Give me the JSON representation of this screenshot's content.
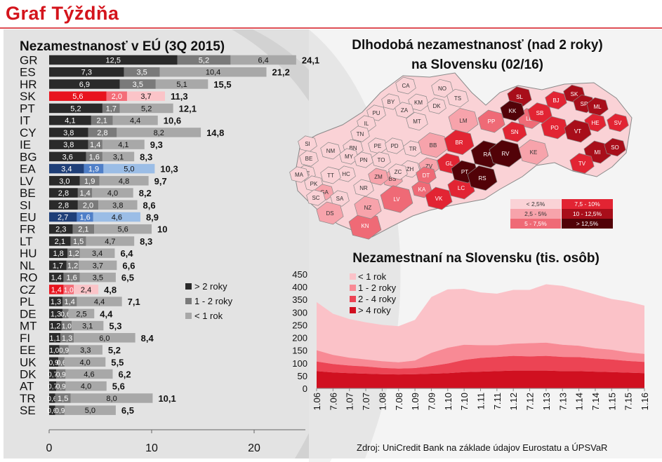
{
  "header": {
    "title": "Graf Týždňa"
  },
  "source": "Zdroj: UniCredit Bank na základe údajov Eurostatu a ÚPSVaR",
  "colors": {
    "accent_red": "#d4141c",
    "gt2": "#2a2a2a",
    "y1_2": "#7a7a7a",
    "lt1": "#a8a8a8",
    "gt2_hl_red": "#e8141e",
    "y1_2_hl_red": "#f46d78",
    "lt1_hl_red": "#fbc4c8",
    "gt2_hl_blue": "#1f3f78",
    "y1_2_hl_blue": "#4f7fc8",
    "lt1_hl_blue": "#9bbde6",
    "area_lt1": "#fbc2c8",
    "area_1_2": "#f88a95",
    "area_2_4": "#ec4454",
    "area_gt4": "#d01020"
  },
  "chart_data": [
    {
      "type": "bar",
      "title": "Nezamestnanosť v EÚ (3Q 2015)",
      "stacked": true,
      "orientation": "horizontal",
      "xlim": [
        0,
        25
      ],
      "xticks": [
        0,
        10,
        20
      ],
      "legend": [
        "> 2 roky",
        "1 - 2 roky",
        "< 1 rok"
      ],
      "rows": [
        {
          "c": "GR",
          "v": [
            12.5,
            5.2,
            6.4
          ],
          "t": "24,1",
          "l": [
            "12,5",
            "5,2",
            "6,4"
          ]
        },
        {
          "c": "ES",
          "v": [
            7.3,
            3.5,
            10.4
          ],
          "t": "21,2",
          "l": [
            "7,3",
            "3,5",
            "10,4"
          ]
        },
        {
          "c": "HR",
          "v": [
            6.9,
            3.5,
            5.1
          ],
          "t": "15,5",
          "l": [
            "6,9",
            "3,5",
            "5,1"
          ]
        },
        {
          "c": "SK",
          "v": [
            5.6,
            2.0,
            3.7
          ],
          "t": "11,3",
          "l": [
            "5,6",
            "2,0",
            "3,7"
          ],
          "hl": "red"
        },
        {
          "c": "PT",
          "v": [
            5.2,
            1.7,
            5.2
          ],
          "t": "12,1",
          "l": [
            "5,2",
            "1,7",
            "5,2"
          ]
        },
        {
          "c": "IT",
          "v": [
            4.1,
            2.1,
            4.4
          ],
          "t": "10,6",
          "l": [
            "4,1",
            "2,1",
            "4,4"
          ]
        },
        {
          "c": "CY",
          "v": [
            3.8,
            2.8,
            8.2
          ],
          "t": "14,8",
          "l": [
            "3,8",
            "2,8",
            "8,2"
          ]
        },
        {
          "c": "IE",
          "v": [
            3.8,
            1.4,
            4.1
          ],
          "t": "9,3",
          "l": [
            "3,8",
            "1,4",
            "4,1"
          ]
        },
        {
          "c": "BG",
          "v": [
            3.6,
            1.6,
            3.1
          ],
          "t": "8,3",
          "l": [
            "3,6",
            "1,6",
            "3,1"
          ]
        },
        {
          "c": "EA",
          "v": [
            3.4,
            1.9,
            5.0
          ],
          "t": "10,3",
          "l": [
            "3,4",
            "1,9",
            "5,0"
          ],
          "hl": "blue"
        },
        {
          "c": "LV",
          "v": [
            3.0,
            1.9,
            4.8
          ],
          "t": "9,7",
          "l": [
            "3,0",
            "1,9",
            "4,8"
          ]
        },
        {
          "c": "BE",
          "v": [
            2.8,
            1.4,
            4.0
          ],
          "t": "8,2",
          "l": [
            "2,8",
            "1,4",
            "4,0"
          ]
        },
        {
          "c": "SI",
          "v": [
            2.8,
            2.0,
            3.8
          ],
          "t": "8,6",
          "l": [
            "2,8",
            "2,0",
            "3,8"
          ]
        },
        {
          "c": "EU",
          "v": [
            2.7,
            1.6,
            4.6
          ],
          "t": "8,9",
          "l": [
            "2,7",
            "1,6",
            "4,6"
          ],
          "hl": "blue"
        },
        {
          "c": "FR",
          "v": [
            2.3,
            2.1,
            5.6
          ],
          "t": "10",
          "l": [
            "2,3",
            "2,1",
            "5,6"
          ]
        },
        {
          "c": "LT",
          "v": [
            2.1,
            1.5,
            4.7
          ],
          "t": "8,3",
          "l": [
            "2,1",
            "1,5",
            "4,7"
          ]
        },
        {
          "c": "HU",
          "v": [
            1.8,
            1.2,
            3.4
          ],
          "t": "6,4",
          "l": [
            "1,8",
            "1,2",
            "3,4"
          ]
        },
        {
          "c": "NL",
          "v": [
            1.7,
            1.2,
            3.7
          ],
          "t": "6,6",
          "l": [
            "1,7",
            "1,2",
            "3,7"
          ]
        },
        {
          "c": "RO",
          "v": [
            1.4,
            1.6,
            3.5
          ],
          "t": "6,5",
          "l": [
            "1,4",
            "1,6",
            "3,5"
          ]
        },
        {
          "c": "CZ",
          "v": [
            1.4,
            1.0,
            2.4
          ],
          "t": "4,8",
          "l": [
            "1,4",
            "1,0",
            "2,4"
          ],
          "hl": "red"
        },
        {
          "c": "PL",
          "v": [
            1.3,
            1.4,
            4.4
          ],
          "t": "7,1",
          "l": [
            "1,3",
            "1,4",
            "4,4"
          ]
        },
        {
          "c": "DE",
          "v": [
            1.3,
            0.6,
            2.5
          ],
          "t": "4,4",
          "l": [
            "1,3",
            "0,6",
            "2,5"
          ]
        },
        {
          "c": "MT",
          "v": [
            1.2,
            1.0,
            3.1
          ],
          "t": "5,3",
          "l": [
            "1,2",
            "1,0",
            "3,1"
          ]
        },
        {
          "c": "FI",
          "v": [
            1.1,
            1.3,
            6.0
          ],
          "t": "8,4",
          "l": [
            "1,1",
            "1,3",
            "6,0"
          ]
        },
        {
          "c": "EE",
          "v": [
            1.0,
            0.9,
            3.3
          ],
          "t": "5,2",
          "l": [
            "1,0",
            "0,9",
            "3,3"
          ]
        },
        {
          "c": "UK",
          "v": [
            0.9,
            0.6,
            4.0
          ],
          "t": "5,5",
          "l": [
            "0,9",
            "0,6",
            "4,0"
          ]
        },
        {
          "c": "DK",
          "v": [
            0.7,
            0.9,
            4.6
          ],
          "t": "6,2",
          "l": [
            "0,7",
            "0,9",
            "4,6"
          ]
        },
        {
          "c": "AT",
          "v": [
            0.7,
            0.9,
            4.0
          ],
          "t": "5,6",
          "l": [
            "0,7",
            "0,9",
            "4,0"
          ]
        },
        {
          "c": "TR",
          "v": [
            0.6,
            1.5,
            8.0
          ],
          "t": "10,1",
          "l": [
            "0,6",
            "1,5",
            "8,0"
          ]
        },
        {
          "c": "SE",
          "v": [
            0.6,
            0.9,
            5.0
          ],
          "t": "6,5",
          "l": [
            "0,6",
            "0,9",
            "5,0"
          ]
        }
      ]
    },
    {
      "type": "heatmap",
      "title": "Dlhodobá nezamestnanosť (nad 2 roky)\nna Slovensku (02/16)",
      "legend": [
        {
          "label": "< 2,5%",
          "class": 0
        },
        {
          "label": "2,5 - 5%",
          "class": 1
        },
        {
          "label": "5 - 7,5%",
          "class": 2
        },
        {
          "label": "7,5 - 10%",
          "class": 3
        },
        {
          "label": "10 - 12,5%",
          "class": 4
        },
        {
          "label": "> 12,5%",
          "class": 5
        }
      ],
      "class_colors": [
        "#fad2d6",
        "#f7a3ab",
        "#ef6a76",
        "#e22433",
        "#a80e1a",
        "#520208"
      ],
      "districts": [
        {
          "n": "NO",
          "c": 0
        },
        {
          "n": "TS",
          "c": 0
        },
        {
          "n": "CA",
          "c": 0
        },
        {
          "n": "KM",
          "c": 0
        },
        {
          "n": "BY",
          "c": 0
        },
        {
          "n": "PU",
          "c": 0
        },
        {
          "n": "ZA",
          "c": 0
        },
        {
          "n": "DK",
          "c": 0
        },
        {
          "n": "MT",
          "c": 0
        },
        {
          "n": "IL",
          "c": 0
        },
        {
          "n": "TN",
          "c": 0
        },
        {
          "n": "PE",
          "c": 0
        },
        {
          "n": "BN",
          "c": 0
        },
        {
          "n": "PD",
          "c": 0
        },
        {
          "n": "TR",
          "c": 0
        },
        {
          "n": "SI",
          "c": 0
        },
        {
          "n": "NM",
          "c": 0
        },
        {
          "n": "MY",
          "c": 0
        },
        {
          "n": "HC",
          "c": 0
        },
        {
          "n": "BE",
          "c": 0
        },
        {
          "n": "SE",
          "c": 0
        },
        {
          "n": "PN",
          "c": 0
        },
        {
          "n": "TO",
          "c": 0
        },
        {
          "n": "TT",
          "c": 0
        },
        {
          "n": "NR",
          "c": 0
        },
        {
          "n": "MA",
          "c": 0
        },
        {
          "n": "PK",
          "c": 0
        },
        {
          "n": "GA",
          "c": 1
        },
        {
          "n": "SA",
          "c": 0
        },
        {
          "n": "SC",
          "c": 0
        },
        {
          "n": "DS",
          "c": 1
        },
        {
          "n": "BS",
          "c": 1
        },
        {
          "n": "BB",
          "c": 1
        },
        {
          "n": "ZH",
          "c": 0
        },
        {
          "n": "ZV",
          "c": 1
        },
        {
          "n": "ZC",
          "c": 0
        },
        {
          "n": "ZM",
          "c": 1
        },
        {
          "n": "KN",
          "c": 2
        },
        {
          "n": "NZ",
          "c": 1
        },
        {
          "n": "LV",
          "c": 2
        },
        {
          "n": "KA",
          "c": 2
        },
        {
          "n": "DT",
          "c": 2
        },
        {
          "n": "KE",
          "c": 1
        },
        {
          "n": "LM",
          "c": 1
        },
        {
          "n": "PP",
          "c": 2
        },
        {
          "n": "LE",
          "c": 2
        },
        {
          "n": "SL",
          "c": 4
        },
        {
          "n": "SN",
          "c": 3
        },
        {
          "n": "SB",
          "c": 3
        },
        {
          "n": "PO",
          "c": 3
        },
        {
          "n": "KK",
          "c": 5
        },
        {
          "n": "BJ",
          "c": 3
        },
        {
          "n": "SK",
          "c": 4
        },
        {
          "n": "SP",
          "c": 4
        },
        {
          "n": "ML",
          "c": 4
        },
        {
          "n": "HE",
          "c": 3
        },
        {
          "n": "SV",
          "c": 3
        },
        {
          "n": "VT",
          "c": 4
        },
        {
          "n": "MI",
          "c": 4
        },
        {
          "n": "SO",
          "c": 4
        },
        {
          "n": "TV",
          "c": 3
        },
        {
          "n": "GL",
          "c": 3
        },
        {
          "n": "BR",
          "c": 3
        },
        {
          "n": "VK",
          "c": 3
        },
        {
          "n": "LC",
          "c": 3
        },
        {
          "n": "PT",
          "c": 5
        },
        {
          "n": "RS",
          "c": 5
        },
        {
          "n": "RA",
          "c": 5
        },
        {
          "n": "RV",
          "c": 5
        }
      ]
    },
    {
      "type": "area",
      "title": "Nezamestnaní na Slovensku (tis. osôb)",
      "stacked": true,
      "ylim": [
        0,
        450
      ],
      "yticks": [
        0,
        50,
        100,
        150,
        200,
        250,
        300,
        350,
        400,
        450
      ],
      "xticks": [
        "1.06",
        "7.06",
        "1.07",
        "7.07",
        "1.08",
        "7.08",
        "1.09",
        "7.09",
        "1.10",
        "7.10",
        "1.11",
        "7.11",
        "1.12",
        "7.12",
        "1.13",
        "7.13",
        "1.14",
        "7.14",
        "1.15",
        "7.15",
        "1.16"
      ],
      "x": [
        "1.06",
        "7.06",
        "1.07",
        "7.07",
        "1.08",
        "7.08",
        "1.09",
        "7.09",
        "1.10",
        "7.10",
        "1.11",
        "7.11",
        "1.12",
        "7.12",
        "1.13",
        "7.13",
        "1.14",
        "7.14",
        "1.15",
        "7.15",
        "1.16"
      ],
      "series": [
        {
          "name": "> 4 roky",
          "values": [
            68,
            63,
            60,
            58,
            56,
            55,
            56,
            58,
            60,
            64,
            66,
            68,
            70,
            70,
            70,
            68,
            68,
            66,
            64,
            62,
            60
          ]
        },
        {
          "name": "2 - 4 roky",
          "values": [
            38,
            33,
            30,
            28,
            25,
            23,
            24,
            30,
            38,
            48,
            54,
            56,
            58,
            56,
            58,
            56,
            55,
            52,
            50,
            46,
            44
          ]
        },
        {
          "name": "1 - 2 roky",
          "values": [
            44,
            36,
            31,
            28,
            26,
            25,
            30,
            52,
            62,
            60,
            50,
            46,
            48,
            52,
            52,
            48,
            45,
            40,
            38,
            34,
            32
          ]
        },
        {
          "name": "< 1 rok",
          "values": [
            190,
            162,
            152,
            146,
            143,
            142,
            160,
            220,
            230,
            220,
            208,
            203,
            212,
            210,
            230,
            232,
            220,
            212,
            200,
            200,
            190
          ]
        }
      ]
    }
  ]
}
